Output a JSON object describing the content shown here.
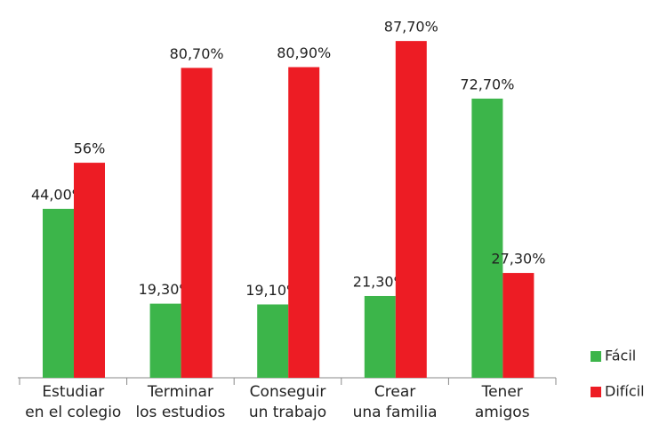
{
  "chart_data": {
    "type": "bar",
    "categories": [
      [
        "Estudiar",
        "en el colegio"
      ],
      [
        "Terminar",
        "los estudios"
      ],
      [
        "Conseguir",
        "un trabajo"
      ],
      [
        "Crear",
        "una familia"
      ],
      [
        "Tener",
        "amigos"
      ]
    ],
    "series": [
      {
        "name": "Fácil",
        "color": "#3cb54a",
        "values": [
          44,
          19.3,
          19.1,
          21.3,
          72.7
        ],
        "value_labels": [
          "44,00%",
          "19,30%",
          "19,10%",
          "21,30%",
          "72,70%"
        ]
      },
      {
        "name": "Difícil",
        "color": "#ed1c24",
        "values": [
          56,
          80.7,
          80.9,
          87.7,
          27.3
        ],
        "value_labels": [
          "56%",
          "80,70%",
          "80,90%",
          "87,70%",
          "27,30%"
        ]
      }
    ],
    "ylim": [
      0,
      100
    ],
    "legend": "right"
  }
}
